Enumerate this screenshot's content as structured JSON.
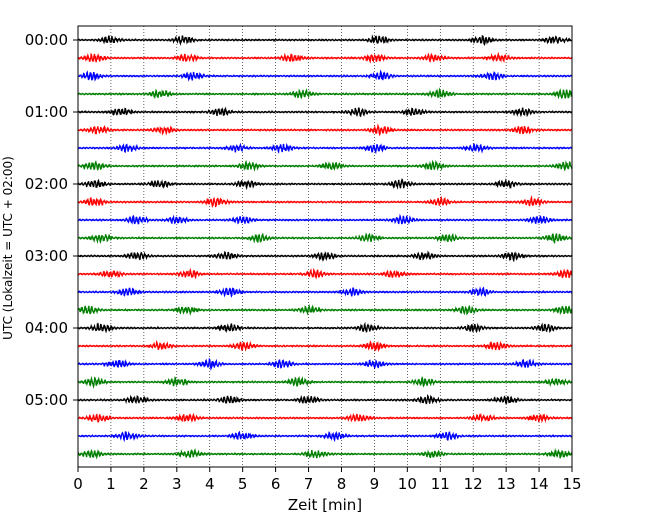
{
  "chart_data": {
    "type": "line",
    "title": "",
    "xlabel": "Zeit  [min]",
    "ylabel": "UTC (Lokalzeit = UTC + 02:00)",
    "xlim": [
      0,
      15
    ],
    "x_ticks": [
      0,
      1,
      2,
      3,
      4,
      5,
      6,
      7,
      8,
      9,
      10,
      11,
      12,
      13,
      14,
      15
    ],
    "y_tick_labels": [
      "00:00",
      "01:00",
      "02:00",
      "03:00",
      "04:00",
      "05:00"
    ],
    "y_tick_trace_index": [
      0,
      4,
      8,
      12,
      16,
      20
    ],
    "trace_interval_minutes": 15,
    "trace_count": 24,
    "trace_colors": [
      "#000000",
      "#ff0000",
      "#0000ff",
      "#007f00"
    ],
    "grid": "vertical dotted at each minute",
    "traces": [
      {
        "start": "00:00",
        "bursts": [
          1.0,
          3.2,
          9.1,
          12.3,
          14.5
        ]
      },
      {
        "start": "00:15",
        "bursts": [
          0.5,
          3.3,
          6.5,
          9.0,
          10.8,
          12.8
        ]
      },
      {
        "start": "00:30",
        "bursts": [
          0.4,
          3.5,
          9.2,
          12.6
        ]
      },
      {
        "start": "00:45",
        "bursts": [
          2.5,
          6.8,
          11.0,
          14.8
        ]
      },
      {
        "start": "01:00",
        "bursts": [
          1.3,
          4.3,
          8.5,
          10.2,
          13.5
        ]
      },
      {
        "start": "01:15",
        "bursts": [
          0.6,
          2.6,
          9.2,
          13.5
        ]
      },
      {
        "start": "01:30",
        "bursts": [
          1.5,
          4.8,
          6.2,
          9.0,
          12.1
        ]
      },
      {
        "start": "01:45",
        "bursts": [
          0.5,
          5.2,
          7.7,
          10.8,
          14.8
        ]
      },
      {
        "start": "02:00",
        "bursts": [
          0.5,
          2.5,
          5.1,
          9.8,
          13.0
        ]
      },
      {
        "start": "02:15",
        "bursts": [
          0.5,
          4.2,
          11.0,
          13.8
        ]
      },
      {
        "start": "02:30",
        "bursts": [
          1.8,
          3.0,
          5.0,
          9.9,
          14.0
        ]
      },
      {
        "start": "02:45",
        "bursts": [
          0.7,
          5.5,
          8.8,
          11.2,
          14.5
        ]
      },
      {
        "start": "03:00",
        "bursts": [
          1.8,
          4.5,
          7.5,
          10.5,
          13.2
        ]
      },
      {
        "start": "03:15",
        "bursts": [
          1.0,
          3.4,
          7.2,
          9.6,
          14.8
        ]
      },
      {
        "start": "03:30",
        "bursts": [
          1.5,
          4.6,
          8.3,
          12.2
        ]
      },
      {
        "start": "03:45",
        "bursts": [
          0.3,
          3.3,
          7.0,
          11.8,
          14.8
        ]
      },
      {
        "start": "04:00",
        "bursts": [
          0.7,
          4.6,
          8.8,
          12.0,
          14.2
        ]
      },
      {
        "start": "04:15",
        "bursts": [
          2.5,
          5.0,
          9.0,
          12.7
        ]
      },
      {
        "start": "04:30",
        "bursts": [
          1.2,
          4.0,
          6.2,
          9.0,
          13.6
        ]
      },
      {
        "start": "04:45",
        "bursts": [
          0.5,
          3.0,
          6.7,
          10.5,
          14.5
        ]
      },
      {
        "start": "05:00",
        "bursts": [
          1.8,
          4.6,
          7.0,
          10.6,
          13.0
        ]
      },
      {
        "start": "05:15",
        "bursts": [
          0.6,
          3.3,
          8.5,
          12.3,
          14.0
        ]
      },
      {
        "start": "05:30",
        "bursts": [
          1.5,
          5.0,
          7.8,
          11.2
        ]
      },
      {
        "start": "05:45",
        "bursts": [
          0.4,
          3.4,
          7.2,
          10.8,
          14.6
        ]
      }
    ]
  }
}
